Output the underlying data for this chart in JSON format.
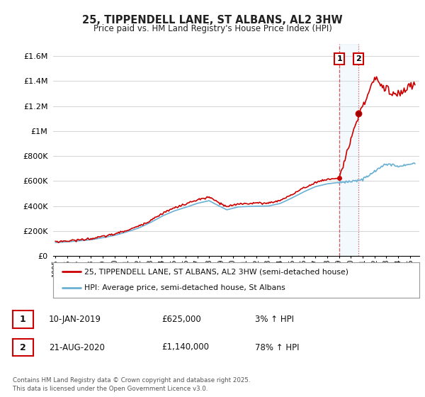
{
  "title": "25, TIPPENDELL LANE, ST ALBANS, AL2 3HW",
  "subtitle": "Price paid vs. HM Land Registry's House Price Index (HPI)",
  "ylabel_ticks": [
    "£0",
    "£200K",
    "£400K",
    "£600K",
    "£800K",
    "£1M",
    "£1.2M",
    "£1.4M",
    "£1.6M"
  ],
  "ytick_vals": [
    0,
    200000,
    400000,
    600000,
    800000,
    1000000,
    1200000,
    1400000,
    1600000
  ],
  "ylim": [
    0,
    1700000
  ],
  "xlim_start": 1994.8,
  "xlim_end": 2025.8,
  "line1_color": "#cc0000",
  "line2_color": "#6ab0d4",
  "vline_color": "#cc3333",
  "shade_color": "#d0e8f8",
  "marker1_date": 2019.03,
  "marker2_date": 2020.64,
  "marker1_price": 625000,
  "marker2_price": 1140000,
  "annotation1": "10-JAN-2019",
  "annotation1_price": "£625,000",
  "annotation1_hpi": "3% ↑ HPI",
  "annotation2": "21-AUG-2020",
  "annotation2_price": "£1,140,000",
  "annotation2_hpi": "78% ↑ HPI",
  "legend_label1": "25, TIPPENDELL LANE, ST ALBANS, AL2 3HW (semi-detached house)",
  "legend_label2": "HPI: Average price, semi-detached house, St Albans",
  "footer": "Contains HM Land Registry data © Crown copyright and database right 2025.\nThis data is licensed under the Open Government Licence v3.0.",
  "background_color": "#ffffff",
  "grid_color": "#cccccc",
  "box_edge_color": "#cc0000"
}
